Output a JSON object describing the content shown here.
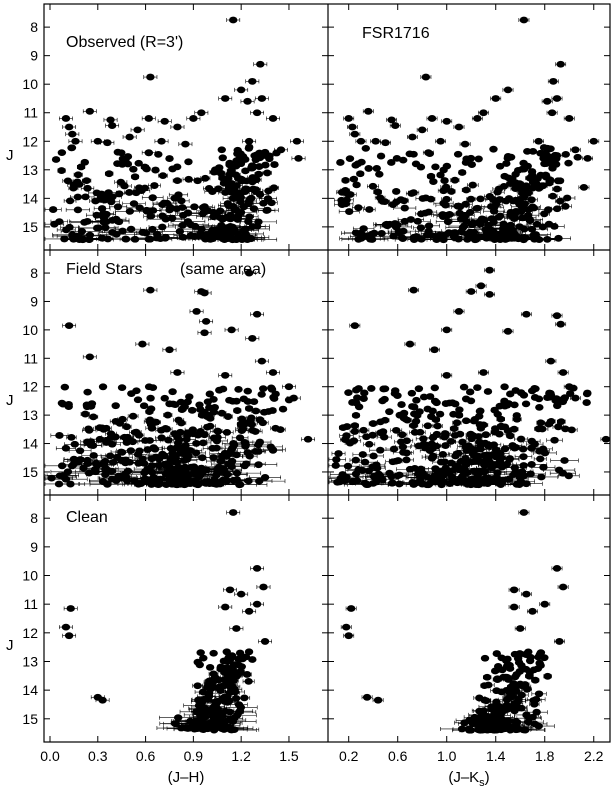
{
  "chart_data": {
    "type": "scatter",
    "y_axis": {
      "label": "J",
      "range": [
        15.6,
        7.4
      ],
      "inverted": true,
      "ticks": [
        "8",
        "9",
        "10",
        "11",
        "12",
        "13",
        "14",
        "15"
      ]
    },
    "x_axes": [
      {
        "label": "(J–H)",
        "range": [
          0.0,
          1.72
        ],
        "ticks": [
          "0.0",
          "0.3",
          "0.6",
          "0.9",
          "1.2",
          "1.5"
        ]
      },
      {
        "label": "(J–K",
        "label_sub": "s",
        "label_end": ")",
        "range": [
          0.08,
          2.3
        ],
        "ticks": [
          "0.2",
          "0.6",
          "1.0",
          "1.4",
          "1.8",
          "2.2"
        ]
      }
    ],
    "panels": [
      {
        "row": 0,
        "col": 0,
        "title": "Observed (R=3')",
        "points": [
          [
            1.15,
            7.75
          ],
          [
            1.32,
            9.3
          ],
          [
            0.63,
            9.75
          ],
          [
            1.2,
            10.2
          ],
          [
            1.27,
            9.9
          ],
          [
            1.24,
            10.6
          ],
          [
            1.33,
            10.5
          ],
          [
            1.1,
            10.5
          ],
          [
            0.1,
            11.2
          ],
          [
            0.12,
            11.5
          ],
          [
            0.14,
            11.75
          ],
          [
            0.16,
            12.0
          ],
          [
            0.25,
            10.95
          ],
          [
            0.38,
            11.25
          ],
          [
            0.39,
            11.45
          ],
          [
            0.55,
            11.6
          ],
          [
            0.62,
            11.2
          ],
          [
            0.72,
            11.3
          ],
          [
            0.8,
            11.5
          ],
          [
            0.9,
            11.2
          ],
          [
            0.95,
            11.0
          ],
          [
            1.3,
            11.0
          ],
          [
            1.55,
            12.0
          ],
          [
            1.56,
            12.6
          ],
          [
            1.4,
            11.2
          ],
          [
            1.45,
            12.3
          ],
          [
            0.3,
            12.0
          ],
          [
            0.36,
            12.05
          ],
          [
            0.5,
            11.85
          ],
          [
            0.7,
            12.0
          ],
          [
            0.85,
            12.1
          ],
          [
            0.62,
            12.4
          ],
          [
            1.25,
            12.0
          ],
          [
            1.35,
            12.5
          ]
        ],
        "cloud": {
          "seed": 11,
          "count": 340,
          "faint": 15.45,
          "bright": 12.2,
          "blue_max": 0.95,
          "red_min": 0.9,
          "red_max": 1.4,
          "blue_x0": 0.05,
          "blue_x1": 0.9
        }
      },
      {
        "row": 0,
        "col": 1,
        "title": "FSR1716",
        "points": [
          [
            1.63,
            7.75
          ],
          [
            1.93,
            9.3
          ],
          [
            0.83,
            9.75
          ],
          [
            1.5,
            10.2
          ],
          [
            1.87,
            9.9
          ],
          [
            1.82,
            10.6
          ],
          [
            1.9,
            10.5
          ],
          [
            1.4,
            10.5
          ],
          [
            0.2,
            11.2
          ],
          [
            0.23,
            11.5
          ],
          [
            0.25,
            11.75
          ],
          [
            0.3,
            12.0
          ],
          [
            0.36,
            10.95
          ],
          [
            0.55,
            11.25
          ],
          [
            0.58,
            11.45
          ],
          [
            0.8,
            11.6
          ],
          [
            0.88,
            11.2
          ],
          [
            1.0,
            11.3
          ],
          [
            1.1,
            11.5
          ],
          [
            1.25,
            11.2
          ],
          [
            1.3,
            11.0
          ],
          [
            1.86,
            11.0
          ],
          [
            2.2,
            12.0
          ],
          [
            2.15,
            12.6
          ],
          [
            2.0,
            11.2
          ],
          [
            2.05,
            12.3
          ],
          [
            0.42,
            12.0
          ],
          [
            0.5,
            12.05
          ],
          [
            0.72,
            11.85
          ],
          [
            0.95,
            12.0
          ],
          [
            1.15,
            12.1
          ],
          [
            0.85,
            12.4
          ],
          [
            1.75,
            12.0
          ],
          [
            1.9,
            12.5
          ]
        ],
        "cloud": {
          "seed": 23,
          "count": 340,
          "faint": 15.45,
          "bright": 12.2,
          "blue_max": 0.95,
          "red_min": 1.2,
          "red_max": 2.0,
          "blue_x0": 0.12,
          "blue_x1": 1.25
        }
      },
      {
        "row": 1,
        "col": 0,
        "title": "Field Stars",
        "title2": "(same area)",
        "points": [
          [
            0.95,
            8.65
          ],
          [
            0.97,
            8.7
          ],
          [
            1.25,
            8.0
          ],
          [
            0.63,
            8.6
          ],
          [
            0.92,
            9.35
          ],
          [
            0.98,
            9.7
          ],
          [
            1.3,
            9.45
          ],
          [
            0.12,
            9.85
          ],
          [
            0.97,
            10.1
          ],
          [
            1.14,
            10.0
          ],
          [
            1.27,
            10.3
          ],
          [
            0.58,
            10.5
          ],
          [
            0.75,
            10.7
          ],
          [
            0.25,
            10.95
          ],
          [
            1.33,
            11.1
          ],
          [
            1.4,
            11.5
          ],
          [
            1.5,
            12.0
          ],
          [
            1.62,
            13.85
          ],
          [
            1.53,
            12.4
          ],
          [
            0.8,
            11.5
          ],
          [
            1.1,
            11.6
          ]
        ],
        "cloud": {
          "seed": 37,
          "count": 420,
          "faint": 15.45,
          "bright": 12.0,
          "blue_max": 1.0,
          "red_min": 0.6,
          "red_max": 1.45,
          "blue_x0": 0.05,
          "blue_x1": 0.9
        }
      },
      {
        "row": 1,
        "col": 1,
        "title": "",
        "points": [
          [
            1.35,
            7.9
          ],
          [
            1.28,
            8.45
          ],
          [
            0.73,
            8.6
          ],
          [
            1.2,
            8.65
          ],
          [
            1.35,
            8.75
          ],
          [
            1.1,
            9.35
          ],
          [
            1.9,
            9.5
          ],
          [
            1.65,
            9.45
          ],
          [
            0.25,
            9.85
          ],
          [
            1.0,
            10.0
          ],
          [
            1.5,
            10.05
          ],
          [
            1.93,
            9.8
          ],
          [
            0.7,
            10.5
          ],
          [
            0.9,
            10.7
          ],
          [
            1.85,
            11.1
          ],
          [
            1.95,
            11.5
          ],
          [
            2.0,
            12.0
          ],
          [
            2.3,
            13.85
          ],
          [
            2.05,
            12.4
          ],
          [
            1.0,
            11.6
          ],
          [
            1.3,
            11.5
          ]
        ],
        "cloud": {
          "seed": 41,
          "count": 420,
          "faint": 15.45,
          "bright": 12.0,
          "blue_max": 1.0,
          "red_min": 0.8,
          "red_max": 2.0,
          "blue_x0": 0.12,
          "blue_x1": 1.3
        }
      },
      {
        "row": 2,
        "col": 0,
        "title": "Clean",
        "points": [
          [
            1.15,
            7.8
          ],
          [
            1.3,
            9.75
          ],
          [
            1.34,
            10.4
          ],
          [
            1.13,
            10.5
          ],
          [
            1.2,
            10.65
          ],
          [
            1.3,
            11.0
          ],
          [
            1.25,
            11.25
          ],
          [
            1.1,
            11.1
          ],
          [
            1.17,
            11.85
          ],
          [
            1.35,
            12.3
          ],
          [
            0.13,
            11.15
          ],
          [
            0.1,
            11.8
          ],
          [
            0.12,
            12.1
          ],
          [
            0.3,
            14.25
          ],
          [
            0.33,
            14.35
          ]
        ],
        "cloud": {
          "seed": 53,
          "count": 190,
          "faint": 15.4,
          "bright": 12.6,
          "blue_max": 0.0,
          "red_min": 0.85,
          "red_max": 1.27,
          "blue_x0": 0.0,
          "blue_x1": 0.0
        }
      },
      {
        "row": 2,
        "col": 1,
        "title": "",
        "points": [
          [
            1.63,
            7.8
          ],
          [
            1.9,
            9.75
          ],
          [
            1.95,
            10.4
          ],
          [
            1.55,
            10.5
          ],
          [
            1.65,
            10.65
          ],
          [
            1.8,
            11.0
          ],
          [
            1.7,
            11.25
          ],
          [
            1.55,
            11.1
          ],
          [
            1.6,
            11.85
          ],
          [
            1.92,
            12.3
          ],
          [
            0.22,
            11.15
          ],
          [
            0.18,
            11.8
          ],
          [
            0.2,
            12.1
          ],
          [
            0.35,
            14.25
          ],
          [
            0.44,
            14.35
          ]
        ],
        "cloud": {
          "seed": 67,
          "count": 190,
          "faint": 15.4,
          "bright": 12.6,
          "blue_max": 0.0,
          "red_min": 1.2,
          "red_max": 1.78,
          "blue_x0": 0.0,
          "blue_x1": 0.0
        }
      }
    ]
  }
}
